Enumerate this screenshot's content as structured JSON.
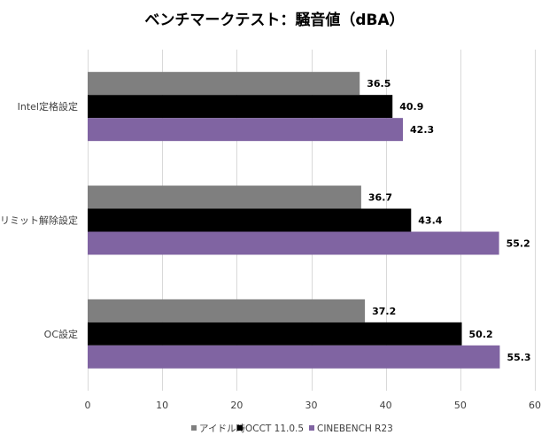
{
  "chart_data": {
    "type": "bar",
    "orientation": "horizontal",
    "title": "ベンチマークテスト：騒音値（dBA）",
    "categories": [
      "Intel定格設定",
      "リミット解除設定",
      "OC設定"
    ],
    "series": [
      {
        "name": "アイドル時",
        "color": "#7f7f7f",
        "values": [
          36.5,
          36.7,
          37.2
        ]
      },
      {
        "name": "OCCT 11.0.5",
        "color": "#000000",
        "values": [
          40.9,
          43.4,
          50.2
        ]
      },
      {
        "name": "CINEBENCH R23",
        "color": "#8064a2",
        "values": [
          42.3,
          55.2,
          55.3
        ]
      }
    ],
    "xlim": [
      0,
      60
    ],
    "xticks": [
      0,
      10,
      20,
      30,
      40,
      50,
      60
    ],
    "grid": true,
    "legend_position": "bottom",
    "data_labels": true
  }
}
